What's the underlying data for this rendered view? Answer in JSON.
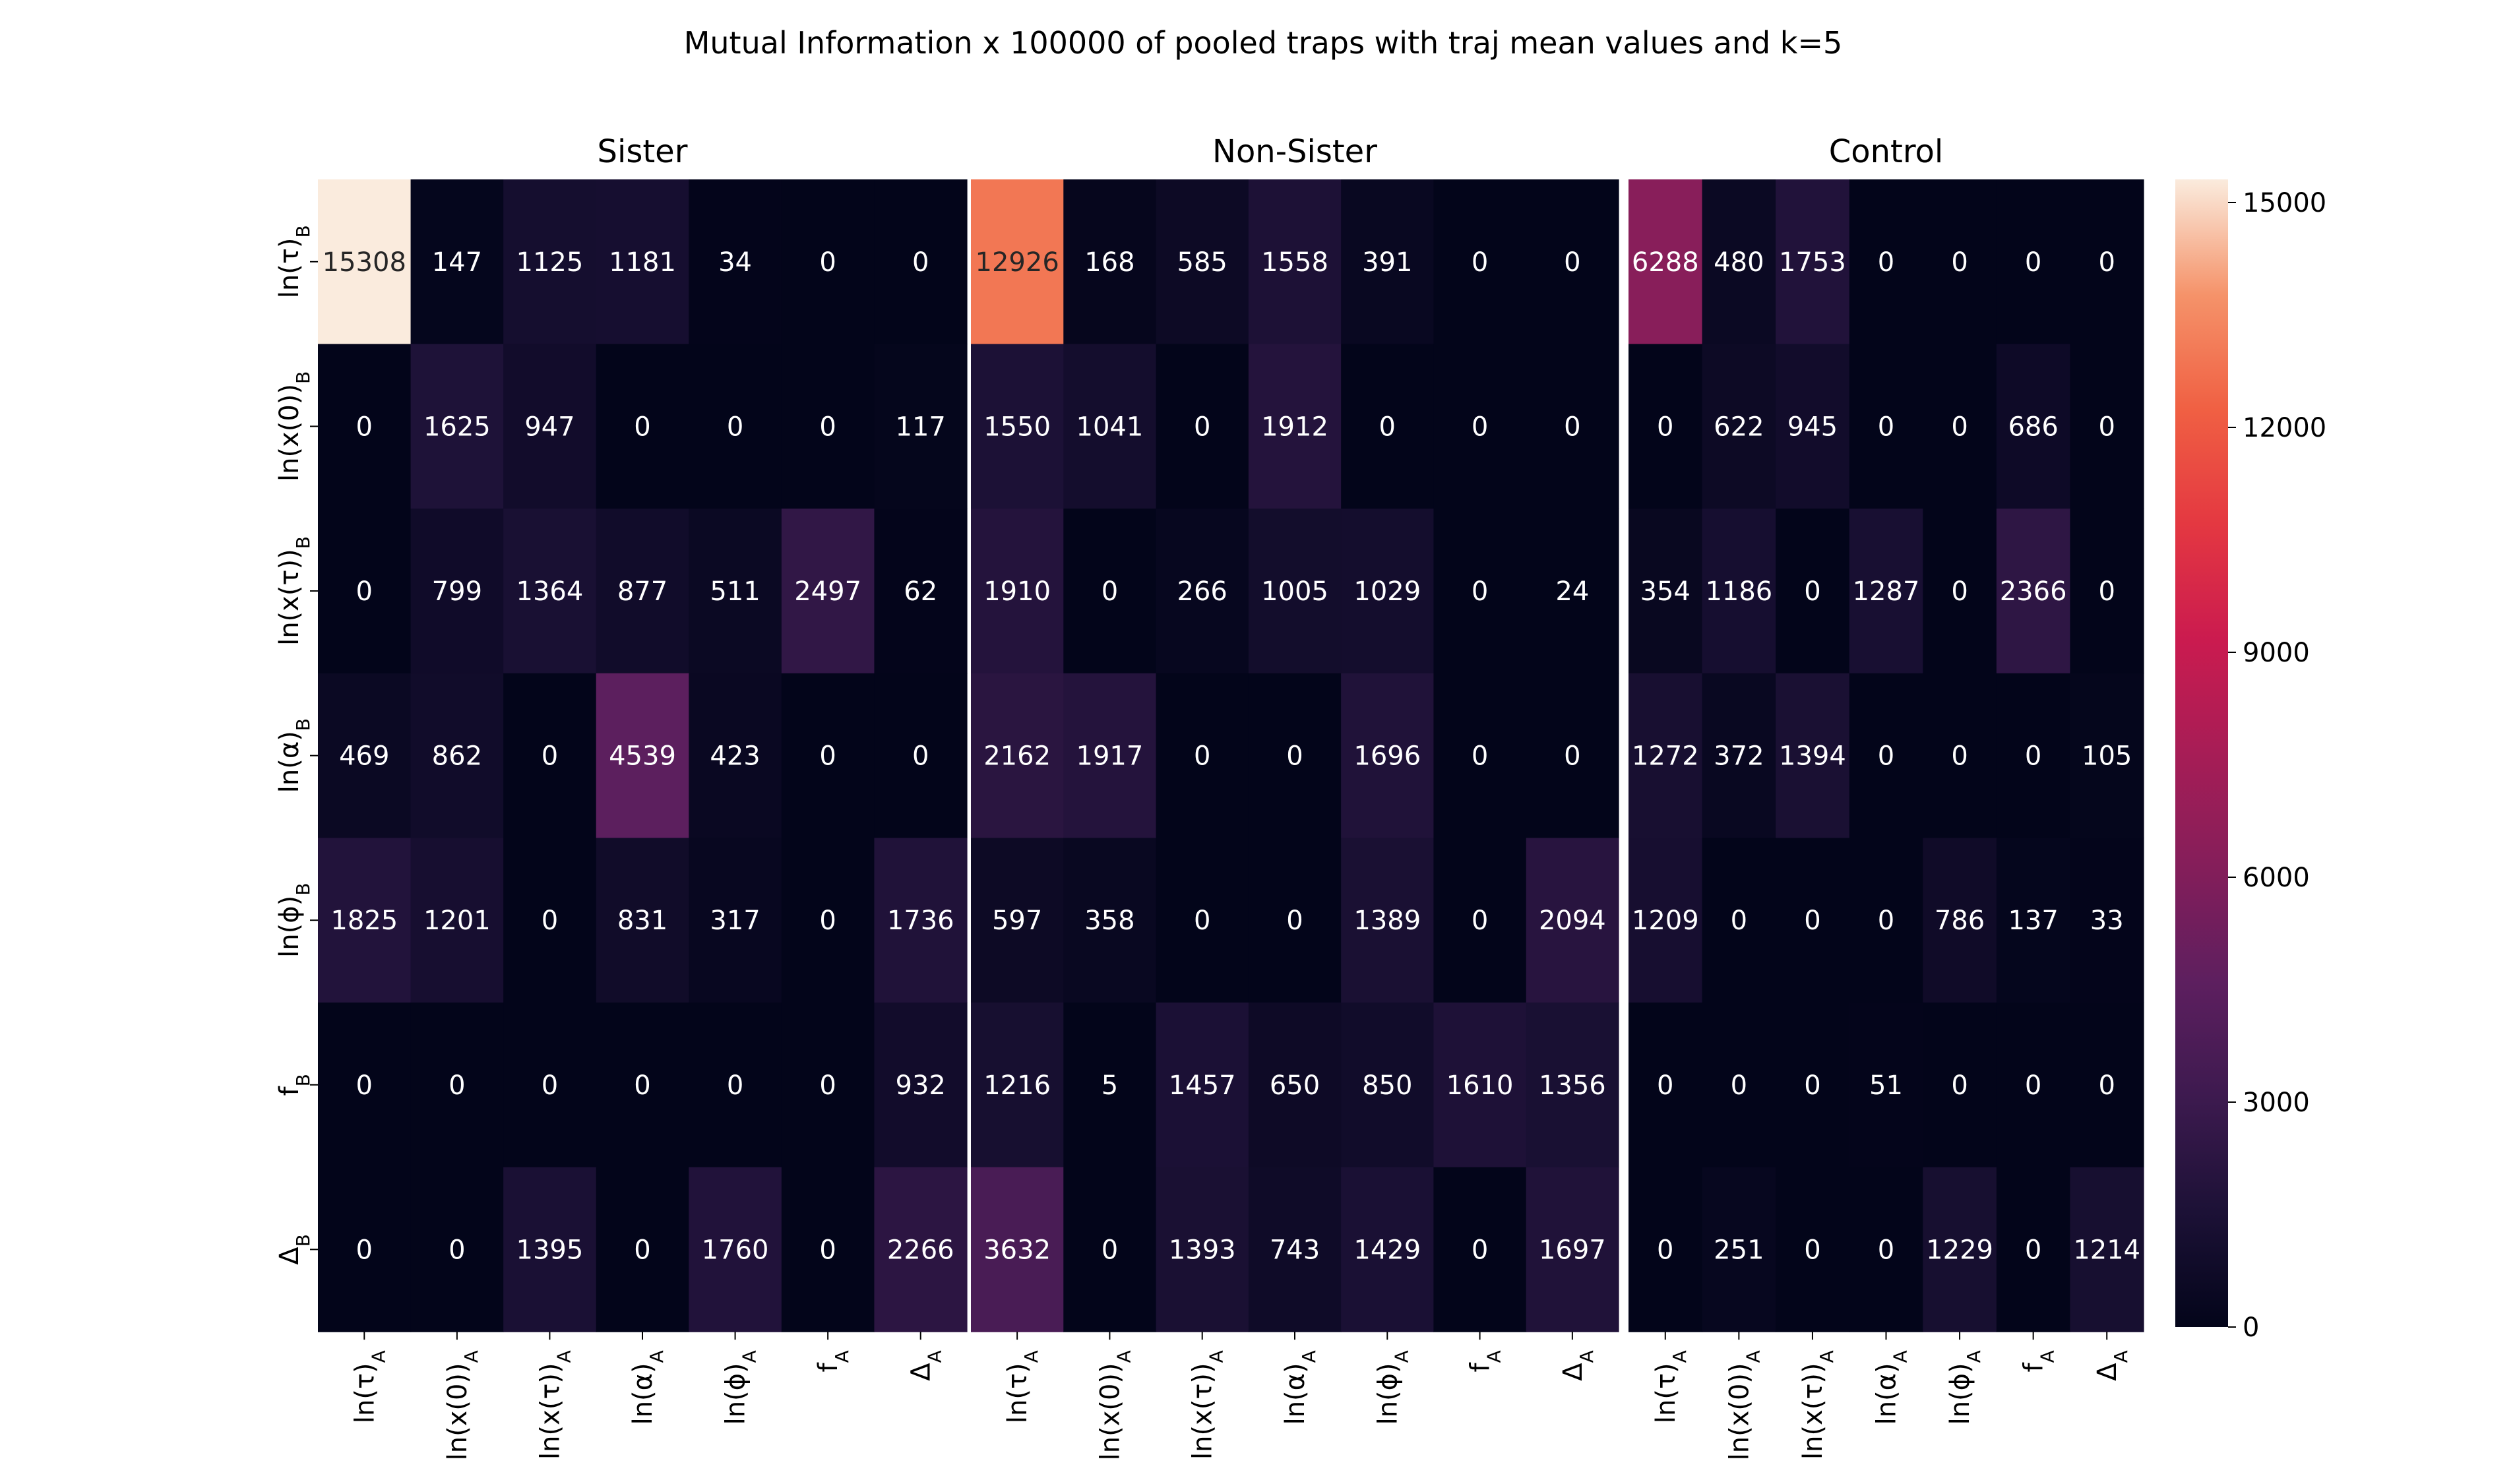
{
  "chart_data": {
    "type": "heatmap",
    "title": "Mutual Information x 100000 of pooled traps with traj mean values and k=5",
    "x_tick_labels": [
      {
        "base": "ln(τ)",
        "sub": "A"
      },
      {
        "base": "ln(x(0))",
        "sub": "A"
      },
      {
        "base": "ln(x(τ))",
        "sub": "A"
      },
      {
        "base": "ln(α)",
        "sub": "A"
      },
      {
        "base": "ln(ϕ)",
        "sub": "A"
      },
      {
        "base": "f",
        "sub": "A"
      },
      {
        "base": "Δ",
        "sub": "A"
      }
    ],
    "y_tick_labels": [
      {
        "base": "ln(τ)",
        "sub": "B"
      },
      {
        "base": "ln(x(0))",
        "sub": "B"
      },
      {
        "base": "ln(x(τ))",
        "sub": "B"
      },
      {
        "base": "ln(α)",
        "sub": "B"
      },
      {
        "base": "ln(ϕ)",
        "sub": "B"
      },
      {
        "base": "f",
        "sub": "B"
      },
      {
        "base": "Δ",
        "sub": "B"
      }
    ],
    "colorbar": {
      "min": 0,
      "max": 15308,
      "ticks": [
        0,
        3000,
        6000,
        9000,
        12000,
        15000
      ],
      "colormap": "rocket"
    },
    "panels": [
      {
        "name": "Sister",
        "values": [
          [
            15308,
            147,
            1125,
            1181,
            34,
            0,
            0
          ],
          [
            0,
            1625,
            947,
            0,
            0,
            0,
            117
          ],
          [
            0,
            799,
            1364,
            877,
            511,
            2497,
            62
          ],
          [
            469,
            862,
            0,
            4539,
            423,
            0,
            0
          ],
          [
            1825,
            1201,
            0,
            831,
            317,
            0,
            1736
          ],
          [
            0,
            0,
            0,
            0,
            0,
            0,
            932
          ],
          [
            0,
            0,
            1395,
            0,
            1760,
            0,
            2266
          ]
        ]
      },
      {
        "name": "Non-Sister",
        "values": [
          [
            12926,
            168,
            585,
            1558,
            391,
            0,
            0
          ],
          [
            1550,
            1041,
            0,
            1912,
            0,
            0,
            0
          ],
          [
            1910,
            0,
            266,
            1005,
            1029,
            0,
            24
          ],
          [
            2162,
            1917,
            0,
            0,
            1696,
            0,
            0
          ],
          [
            597,
            358,
            0,
            0,
            1389,
            0,
            2094
          ],
          [
            1216,
            5,
            1457,
            650,
            850,
            1610,
            1356
          ],
          [
            3632,
            0,
            1393,
            743,
            1429,
            0,
            1697
          ]
        ]
      },
      {
        "name": "Control",
        "values": [
          [
            6288,
            480,
            1753,
            0,
            0,
            0,
            0
          ],
          [
            0,
            622,
            945,
            0,
            0,
            686,
            0
          ],
          [
            354,
            1186,
            0,
            1287,
            0,
            2366,
            0
          ],
          [
            1272,
            372,
            1394,
            0,
            0,
            0,
            105
          ],
          [
            1209,
            0,
            0,
            0,
            786,
            137,
            33
          ],
          [
            0,
            0,
            0,
            51,
            0,
            0,
            0
          ],
          [
            0,
            251,
            0,
            0,
            1229,
            0,
            1214
          ]
        ]
      }
    ]
  }
}
